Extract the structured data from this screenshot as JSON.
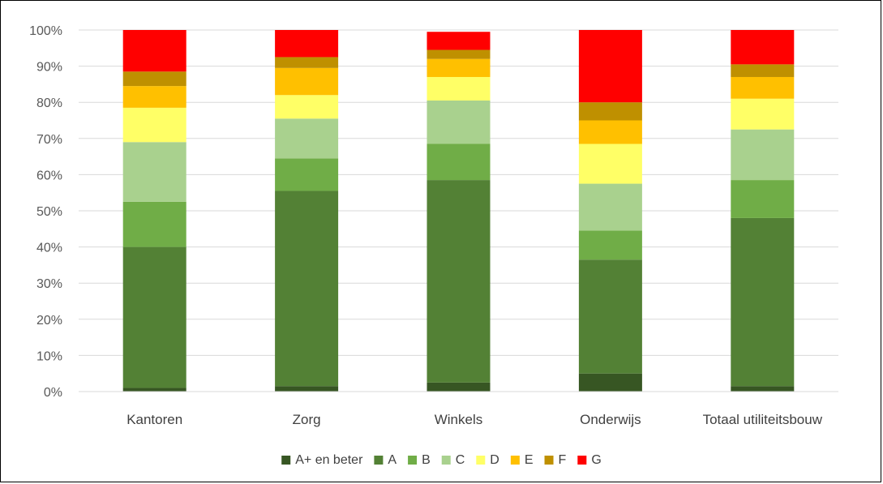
{
  "chart_data": {
    "type": "bar",
    "stacked": true,
    "title": "",
    "xlabel": "",
    "ylabel": "",
    "ylim": [
      0,
      100
    ],
    "yticks": [
      "0%",
      "10%",
      "20%",
      "30%",
      "40%",
      "50%",
      "60%",
      "70%",
      "80%",
      "90%",
      "100%"
    ],
    "grid": true,
    "legend_position": "bottom",
    "categories": [
      "Kantoren",
      "Zorg",
      "Winkels",
      "Onderwijs",
      "Totaal utiliteitsbouw"
    ],
    "series": [
      {
        "name": "A+  en beter",
        "color": "#375623",
        "values": [
          1,
          1.5,
          2.5,
          5,
          1.5
        ]
      },
      {
        "name": "A",
        "color": "#538135",
        "values": [
          39,
          54,
          56,
          31.5,
          46.5
        ]
      },
      {
        "name": "B",
        "color": "#70AD47",
        "values": [
          12.5,
          9,
          10,
          8,
          10.5
        ]
      },
      {
        "name": "C",
        "color": "#A9D18E",
        "values": [
          16.5,
          11,
          12,
          13,
          14
        ]
      },
      {
        "name": "D",
        "color": "#FFFF66",
        "values": [
          9.5,
          6.5,
          6.5,
          11,
          8.5
        ]
      },
      {
        "name": "E",
        "color": "#FFC000",
        "values": [
          6,
          7.5,
          5,
          6.5,
          6
        ]
      },
      {
        "name": "F",
        "color": "#BF9000",
        "values": [
          4,
          3,
          2.5,
          5,
          3.5
        ]
      },
      {
        "name": "G",
        "color": "#FF0000",
        "values": [
          11.5,
          7.5,
          5,
          20,
          9.5
        ]
      }
    ]
  }
}
